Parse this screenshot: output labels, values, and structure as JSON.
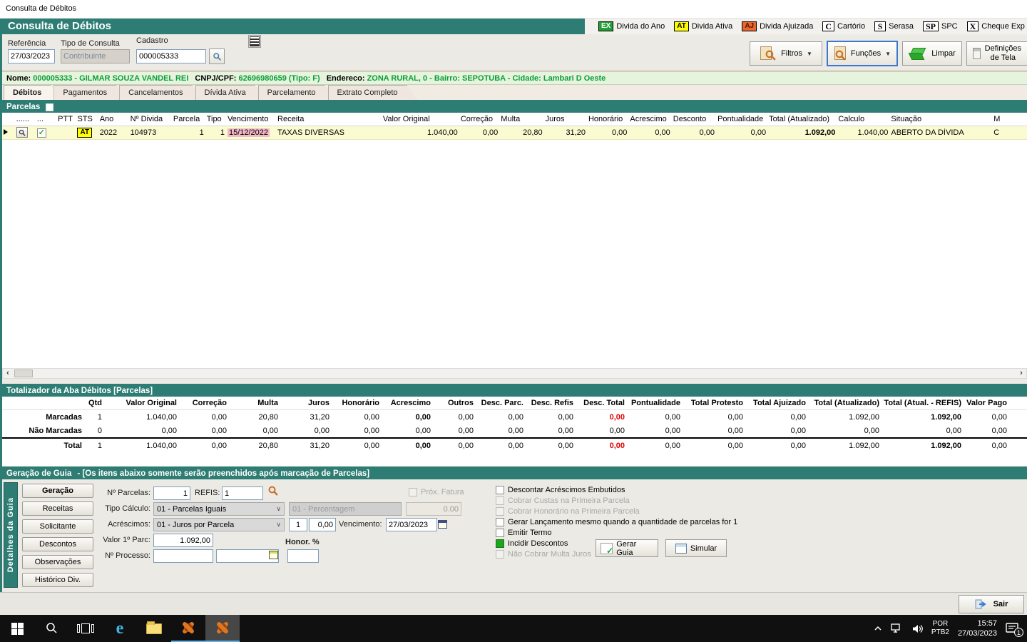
{
  "colors": {
    "teal": "#2E7D74",
    "badge_ex_bg": "#21A135",
    "badge_at_bg": "#FFFF00",
    "badge_aj_bg": "#E8682F",
    "value_green": "#0A9E38",
    "alert_red": "#E00000",
    "row_yellow": "#FBFBD2",
    "venc_pink": "#F2B9C7"
  },
  "window": {
    "title": "Consulta de Débitos"
  },
  "header": {
    "title": "Consulta de Débitos",
    "legend": [
      {
        "code": "EX",
        "label": "Divida do Ano",
        "style": "ex"
      },
      {
        "code": "AT",
        "label": "Divida Ativa",
        "style": "at"
      },
      {
        "code": "AJ",
        "label": "Divida Ajuizada",
        "style": "aj"
      },
      {
        "code": "C",
        "label": "Cartório",
        "style": "plain"
      },
      {
        "code": "S",
        "label": "Serasa",
        "style": "plain"
      },
      {
        "code": "SP",
        "label": "SPC",
        "style": "plain"
      },
      {
        "code": "X",
        "label": "Cheque Exp",
        "style": "plain"
      }
    ]
  },
  "toolbar": {
    "referencia_label": "Referência",
    "referencia_value": "27/03/2023",
    "tipo_label": "Tipo de Consulta",
    "tipo_value": "Contribuinte",
    "cadastro_label": "Cadastro",
    "cadastro_value": "000005333",
    "filtros": "Filtros",
    "funcoes": "Funções",
    "limpar": "Limpar",
    "definicoes": "Definições de Tela"
  },
  "contribuinte": {
    "nome_label": "Nome:",
    "nome": "000005333 - GILMAR SOUZA VANDEL REI",
    "doc_label": "CNPJ/CPF:",
    "doc": "62696980659 (Tipo: F)",
    "end_label": "Endereco:",
    "endereco": "ZONA RURAL, 0 - Bairro: SEPOTUBA - Cidade: Lambari D Oeste"
  },
  "tabs": [
    {
      "label": "Débitos",
      "state": "active"
    },
    {
      "label": "Pagamentos",
      "state": ""
    },
    {
      "label": "Cancelamentos",
      "state": ""
    },
    {
      "label": "Dívida Ativa",
      "state": ""
    },
    {
      "label": "Parcelamento",
      "state": ""
    },
    {
      "label": "Extrato Completo",
      "state": ""
    }
  ],
  "parcelas": {
    "title": "Parcelas",
    "columns": [
      "",
      "......",
      "...",
      "PTT",
      "STS",
      "Ano",
      "Nº Divida",
      "Parcela",
      "Tipo",
      "Vencimento",
      "Receita",
      "Valor Original",
      "Correção",
      "Multa",
      "Juros",
      "Honorário",
      "Acrescimo",
      "Desconto",
      "Pontualidade",
      "Total (Atualizado)",
      "Calculo",
      "Situação",
      "M"
    ],
    "row": {
      "sts": "AT",
      "ano": "2022",
      "n_divida": "104973",
      "parcela": "1",
      "tipo": "1",
      "vencimento": "15/12/2022",
      "receita": "TAXAS DIVERSAS",
      "valor_original": "1.040,00",
      "correcao": "0,00",
      "multa": "20,80",
      "juros": "31,20",
      "honorario": "0,00",
      "acrescimo": "0,00",
      "desconto": "0,00",
      "pontualidade": "0,00",
      "total_atualizado": "1.092,00",
      "calculo": "1.040,00",
      "situacao": "ABERTO DA DÍVIDA",
      "extra": "C"
    }
  },
  "totalizador": {
    "title": "Totalizador da Aba Débitos [Parcelas]",
    "columns": [
      "Qtd",
      "Valor Original",
      "Correção",
      "Multa",
      "Juros",
      "Honorário",
      "Acrescimo",
      "Outros",
      "Desc. Parc.",
      "Desc. Refis",
      "Desc. Total",
      "Pontualidade",
      "Total Protesto",
      "Total Ajuizado",
      "Total (Atualizado)",
      "Total (Atual. - REFIS)",
      "Valor Pago"
    ],
    "rows": [
      {
        "label": "Marcadas",
        "state": "",
        "values": [
          "1",
          "1.040,00",
          "0,00",
          "20,80",
          "31,20",
          "0,00",
          "0,00",
          "0,00",
          "0,00",
          "0,00",
          "0,00",
          "0,00",
          "0,00",
          "0,00",
          "1.092,00",
          "1.092,00",
          "0,00"
        ]
      },
      {
        "label": "Não Marcadas",
        "state": "dim",
        "values": [
          "0",
          "0,00",
          "0,00",
          "0,00",
          "0,00",
          "0,00",
          "0,00",
          "0,00",
          "0,00",
          "0,00",
          "0,00",
          "0,00",
          "0,00",
          "0,00",
          "0,00",
          "0,00",
          "0,00"
        ]
      },
      {
        "label": "Total",
        "state": "tot",
        "values": [
          "1",
          "1.040,00",
          "0,00",
          "20,80",
          "31,20",
          "0,00",
          "0,00",
          "0,00",
          "0,00",
          "0,00",
          "0,00",
          "0,00",
          "0,00",
          "0,00",
          "1.092,00",
          "1.092,00",
          "0,00"
        ]
      }
    ]
  },
  "geracao": {
    "title": "Geração de Guia",
    "note": "-   [Os itens abaixo somente serão preenchidos após marcação de Parcelas]",
    "side_tab": "Detalhes da Guia",
    "buttons": [
      {
        "label": "Geração",
        "state": "active"
      },
      {
        "label": "Receitas",
        "state": ""
      },
      {
        "label": "Solicitante",
        "state": ""
      },
      {
        "label": "Descontos",
        "state": ""
      },
      {
        "label": "Observações",
        "state": ""
      },
      {
        "label": "Histórico Div.",
        "state": ""
      }
    ],
    "form": {
      "n_parcelas_label": "Nº Parcelas:",
      "n_parcelas": "1",
      "refis_label": "REFIS:",
      "refis": "1",
      "prox_fatura": "Próx. Fatura",
      "tipo_calculo_label": "Tipo Cálculo:",
      "tipo_calculo": "01 - Parcelas Iguais",
      "percentagem": "01 - Percentagem",
      "percent_value": "0.00",
      "acrescimos_label": "Acréscimos:",
      "acrescimos": "01 - Juros por Parcela",
      "acresc_n": "1",
      "acresc_v": "0,00",
      "vencimento_label": "Vencimento:",
      "vencimento": "27/03/2023",
      "valor_parc_label": "Valor 1º Parc:",
      "valor_parc": "1.092,00",
      "honor_label": "Honor. %",
      "processo_label": "Nº Processo:"
    },
    "checks": [
      {
        "label": "Descontar Acréscimos Embutidos",
        "state": "normal"
      },
      {
        "label": "Cobrar Custas na Primeira Parcela",
        "state": "disabled"
      },
      {
        "label": "Cobrar Honorário na Primeira Parcela",
        "state": "disabled"
      },
      {
        "label": "Gerar Lançamento mesmo quando a quantidade de parcelas for 1",
        "state": "normal"
      },
      {
        "label": "Emitir Termo",
        "state": "normal"
      },
      {
        "label": "Incidir Descontos",
        "state": "checked"
      },
      {
        "label": "Não Cobrar Multa Juros",
        "state": "disabled"
      }
    ],
    "gerar_guia": "Gerar Guia",
    "simular": "Simular"
  },
  "footer": {
    "sair": "Sair"
  },
  "taskbar": {
    "lang_top": "POR",
    "lang_bottom": "PTB2",
    "time": "15:57",
    "date": "27/03/2023",
    "badge": "1"
  }
}
